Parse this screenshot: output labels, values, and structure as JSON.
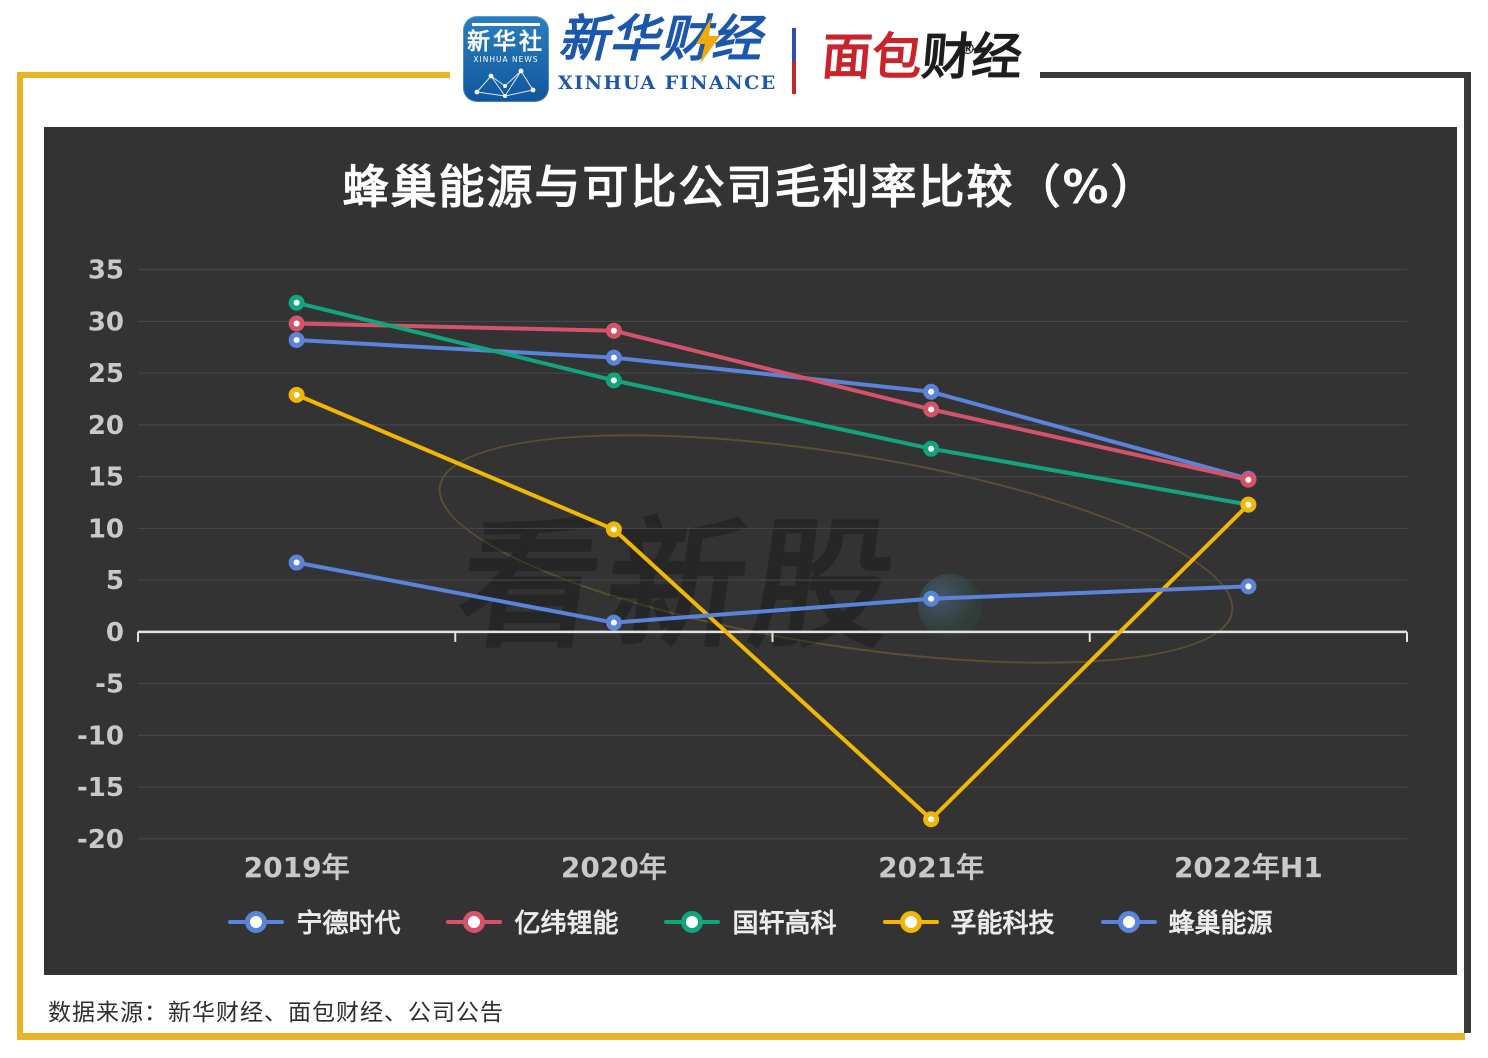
{
  "header": {
    "xinhua_news": {
      "cn": "新华社",
      "en": "XINHUA NEWS"
    },
    "xinhua_finance": {
      "cn": "新华财经",
      "en": "XINHUA FINANCE"
    },
    "mianbao": {
      "red": "面包",
      "dark": "财经",
      "reg": "®"
    }
  },
  "chart_data": {
    "type": "line",
    "title": "蜂巢能源与可比公司毛利率比较（%）",
    "categories": [
      "2019年",
      "2020年",
      "2021年",
      "2022年H1"
    ],
    "ylim": [
      -20,
      35
    ],
    "yticks": [
      35,
      30,
      25,
      20,
      15,
      10,
      5,
      0,
      -5,
      -10,
      -15,
      -20
    ],
    "grid": true,
    "legend_position": "bottom",
    "watermark": "看新股",
    "colors": {
      "background": "#333333",
      "gridline": "#4a4a4a",
      "axis": "#e3e3e3",
      "tick_label": "#c9c9c9",
      "frame_yellow": "#e9b32a"
    },
    "series": [
      {
        "name": "宁德时代",
        "color": "#5b83da",
        "values": [
          28.2,
          26.5,
          23.2,
          14.8
        ]
      },
      {
        "name": "亿纬锂能",
        "color": "#d5536a",
        "values": [
          29.8,
          29.1,
          21.5,
          14.7
        ]
      },
      {
        "name": "国轩高科",
        "color": "#12a47d",
        "values": [
          31.8,
          24.3,
          17.7,
          12.3
        ]
      },
      {
        "name": "孚能科技",
        "color": "#f2b705",
        "values": [
          22.9,
          9.9,
          -18.1,
          12.3
        ]
      },
      {
        "name": "蜂巢能源",
        "color": "#5b83da",
        "values": [
          6.7,
          0.9,
          3.2,
          4.4
        ]
      }
    ]
  },
  "footer": {
    "source": "数据来源：新华财经、面包财经、公司公告"
  }
}
